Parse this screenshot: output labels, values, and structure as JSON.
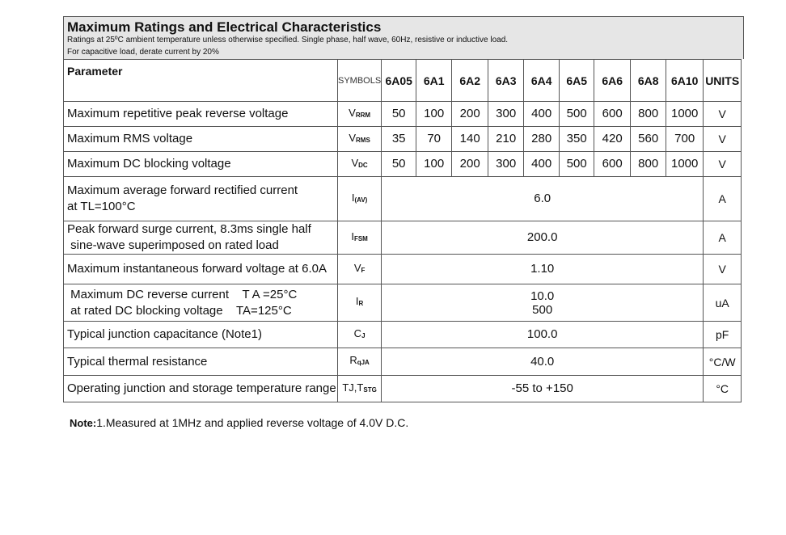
{
  "header": {
    "title": "Maximum Ratings and Electrical Characteristics",
    "line1": "Ratings at 25ºC ambient temperature unless otherwise specified. Single phase, half wave, 60Hz, resistive or inductive load.",
    "line2": "For capacitive load, derate current by 20%"
  },
  "columns": {
    "parameter": "Parameter",
    "symbols": "SYMBOLS",
    "parts": [
      "6A05",
      "6A1",
      "6A2",
      "6A3",
      "6A4",
      "6A5",
      "6A6",
      "6A8",
      "6A10"
    ],
    "units": "UNITS"
  },
  "rows": [
    {
      "param": [
        "Maximum repetitive peak reverse voltage"
      ],
      "sym": [
        "V",
        "RRM"
      ],
      "values": [
        "50",
        "100",
        "200",
        "300",
        "400",
        "500",
        "600",
        "800",
        "1000"
      ],
      "unit": "V"
    },
    {
      "param": [
        "Maximum RMS voltage"
      ],
      "sym": [
        "V",
        "RMS"
      ],
      "values": [
        "35",
        "70",
        "140",
        "210",
        "280",
        "350",
        "420",
        "560",
        "700"
      ],
      "unit": "V"
    },
    {
      "param": [
        "Maximum DC blocking voltage"
      ],
      "sym": [
        "V",
        "DC"
      ],
      "values": [
        "50",
        "100",
        "200",
        "300",
        "400",
        "500",
        "600",
        "800",
        "1000"
      ],
      "unit": "V"
    },
    {
      "param": [
        "Maximum average forward rectified current",
        "at TL=100°C"
      ],
      "sym": [
        "I",
        "(AV)"
      ],
      "value": "6.0",
      "unit": "A"
    },
    {
      "param": [
        "Peak forward surge current, 8.3ms single half",
        " sine-wave superimposed on rated load"
      ],
      "sym": [
        "I",
        "FSM"
      ],
      "value": "200.0",
      "unit": "A"
    },
    {
      "param": [
        "Maximum instantaneous forward voltage at 6.0A"
      ],
      "sym": [
        "V",
        "F"
      ],
      "value": "1.10",
      "unit": "V"
    },
    {
      "param": [
        " Maximum DC reverse current    T A =25°C",
        " at rated DC blocking voltage    TA=125°C"
      ],
      "sym": [
        "I",
        "R"
      ],
      "value": [
        "10.0",
        "500"
      ],
      "unit": "uA"
    },
    {
      "param": [
        "Typical junction capacitance (Note1)"
      ],
      "sym": [
        "C",
        "J"
      ],
      "value": "100.0",
      "unit": "pF"
    },
    {
      "param": [
        "Typical thermal resistance"
      ],
      "sym": [
        "R",
        "qJA"
      ],
      "value": "40.0",
      "unit": "°C/W"
    },
    {
      "param": [
        "Operating junction and storage temperature range"
      ],
      "sym": [
        "TJ,T",
        "STG"
      ],
      "value": "-55 to +150",
      "unit": "°C"
    }
  ],
  "note": {
    "label": "Note:",
    "text": "1.Measured at 1MHz and applied reverse voltage of 4.0V D.C."
  }
}
